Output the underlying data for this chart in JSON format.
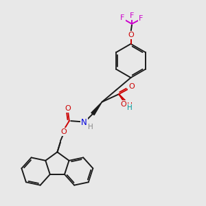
{
  "background_color": "#e8e8e8",
  "bond_color": "#1a1a1a",
  "O_color": "#cc0000",
  "N_color": "#0000dd",
  "F_color": "#cc00cc",
  "H_gray": "#888888",
  "H_teal": "#009999",
  "figsize": [
    3.0,
    3.0
  ],
  "dpi": 100,
  "xlim": [
    0,
    10
  ],
  "ylim": [
    0,
    10
  ]
}
